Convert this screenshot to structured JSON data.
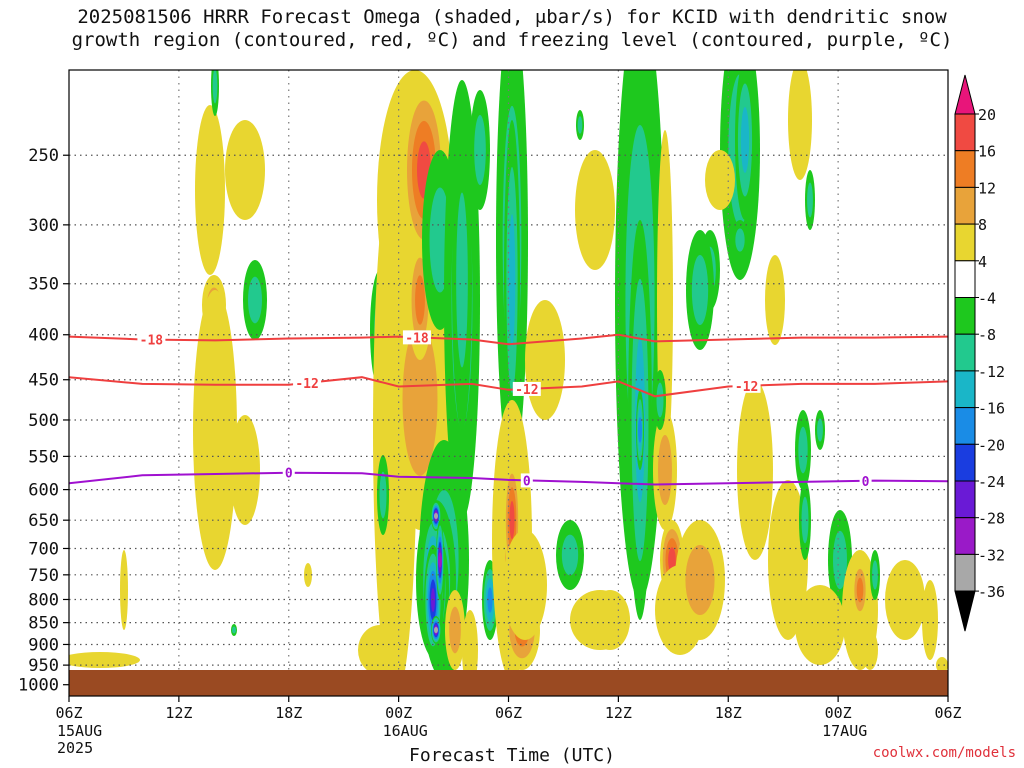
{
  "title_line1": "2025081506 HRRR Forecast Omega (shaded, μbar/s) for KCID with dendritic snow",
  "title_line2": "growth region (contoured, red, ºC) and freezing level (contoured, purple, ºC)",
  "credit": "coolwx.com/models",
  "chart_data": {
    "type": "heatmap",
    "xlabel": "Forecast Time (UTC)",
    "ylabel": "",
    "x_ticks": [
      "06Z",
      "12Z",
      "18Z",
      "00Z",
      "06Z",
      "12Z",
      "18Z",
      "00Z",
      "06Z"
    ],
    "x_tick_hours": [
      0,
      6,
      12,
      18,
      24,
      30,
      36,
      42,
      48
    ],
    "x_sublabels": [
      {
        "hour": 0,
        "lines": [
          "15AUG",
          "2025"
        ]
      },
      {
        "hour": 18,
        "lines": [
          "16AUG"
        ]
      },
      {
        "hour": 42,
        "lines": [
          "17AUG"
        ]
      }
    ],
    "x_range_hours": [
      0,
      48
    ],
    "y_ticks": [
      250,
      300,
      350,
      400,
      450,
      500,
      550,
      600,
      650,
      700,
      750,
      800,
      850,
      900,
      950,
      1000
    ],
    "y_range_mb": [
      200,
      1030
    ],
    "y_scale": "log-pressure (inverted)",
    "grid": true,
    "colorbar": {
      "labels": [
        20,
        16,
        12,
        8,
        4,
        -4,
        -8,
        -12,
        -16,
        -20,
        -24,
        -28,
        -32,
        -36
      ],
      "colors": [
        "#e8157a",
        "#f04a42",
        "#ee7d24",
        "#e8a33a",
        "#e8d630",
        "#ffffff",
        "#1ec81e",
        "#22c98e",
        "#1ab6c8",
        "#1a8ce6",
        "#1a3de0",
        "#6a1ad6",
        "#9a1ac8",
        "#a8a8a8",
        "#000000"
      ]
    },
    "terrain_color": "#9a4a22",
    "contours": [
      {
        "label": "-18",
        "color": "#ef3f3f",
        "x": [
          0,
          4,
          8,
          12,
          16,
          18,
          22,
          24,
          28,
          30,
          32,
          36,
          40,
          44,
          48
        ],
        "y": [
          402,
          405,
          406,
          404,
          403,
          402,
          405,
          410,
          404,
          400,
          407,
          405,
          403,
          403,
          402
        ],
        "label_hours": [
          4.5,
          19
        ]
      },
      {
        "label": "-12",
        "color": "#ef3f3f",
        "x": [
          0,
          4,
          8,
          12,
          16,
          18,
          22,
          24,
          28,
          30,
          32,
          36,
          40,
          44,
          48
        ],
        "y": [
          447,
          455,
          456,
          456,
          447,
          458,
          455,
          462,
          458,
          452,
          470,
          458,
          455,
          455,
          452
        ],
        "label_hours": [
          13,
          25,
          37
        ]
      },
      {
        "label": "0",
        "color": "#a010d0",
        "x": [
          0,
          4,
          8,
          12,
          16,
          18,
          22,
          24,
          28,
          30,
          32,
          36,
          40,
          44,
          48
        ],
        "y": [
          590,
          578,
          576,
          574,
          575,
          580,
          582,
          585,
          588,
          590,
          592,
          590,
          588,
          586,
          587
        ],
        "label_hours": [
          12,
          25,
          43.5
        ]
      }
    ],
    "omega_features": [
      {
        "hour": 20.6,
        "mb": 700,
        "value": -36
      },
      {
        "hour": 20.6,
        "mb": 900,
        "value": -36
      },
      {
        "hour": 19.6,
        "mb": 270,
        "value": 20
      },
      {
        "hour": 24.0,
        "mb": 620,
        "value": 20
      },
      {
        "hour": 24.3,
        "mb": 900,
        "value": 16
      },
      {
        "hour": 33.0,
        "mb": 740,
        "value": 20
      },
      {
        "hour": 24.0,
        "mb": 330,
        "value": -16
      },
      {
        "hour": 30.8,
        "mb": 570,
        "value": -20
      },
      {
        "hour": 44.0,
        "mb": 820,
        "value": 16
      }
    ]
  }
}
